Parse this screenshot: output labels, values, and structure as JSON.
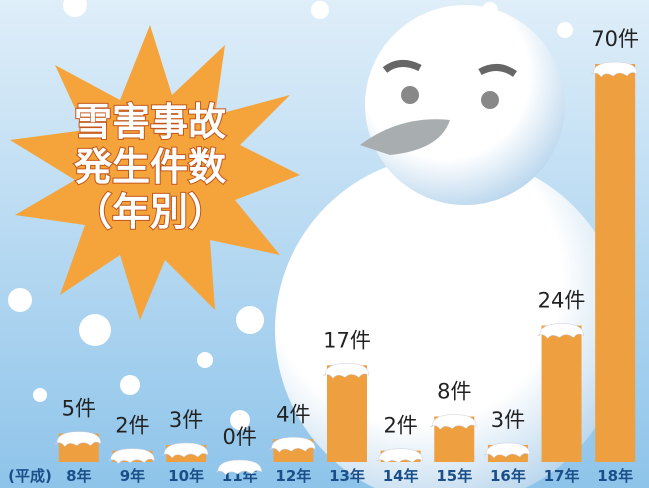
{
  "chart_data": {
    "type": "bar",
    "title_lines": [
      "雪害事故",
      "発生件数",
      "（年別）"
    ],
    "era_label": "(平成)",
    "categories": [
      "8年",
      "9年",
      "10年",
      "11年",
      "12年",
      "13年",
      "14年",
      "15年",
      "16年",
      "17年",
      "18年"
    ],
    "values": [
      5,
      2,
      3,
      0,
      4,
      17,
      2,
      8,
      3,
      24,
      70
    ],
    "value_labels": [
      "5件",
      "2件",
      "3件",
      "0件",
      "4件",
      "17件",
      "2件",
      "8件",
      "3件",
      "24件",
      "70件"
    ],
    "color": "#eea040"
  }
}
